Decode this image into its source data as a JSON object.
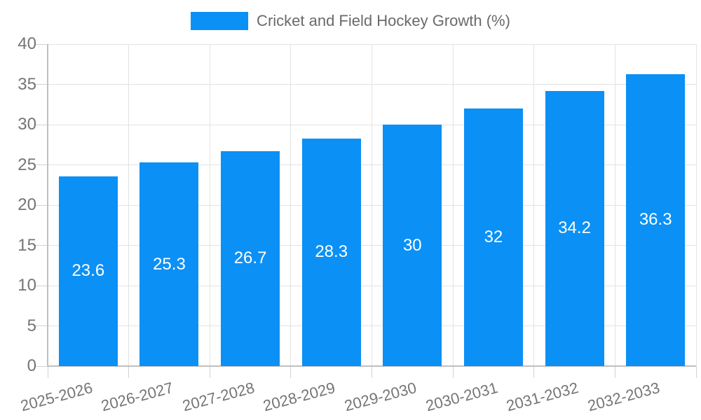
{
  "chart_data": {
    "type": "bar",
    "legend_label": "Cricket and Field Hockey Growth (%)",
    "legend_position": "top",
    "categories": [
      "2025-2026",
      "2026-2027",
      "2027-2028",
      "2028-2029",
      "2029-2030",
      "2030-2031",
      "2031-2032",
      "2032-2033"
    ],
    "values": [
      23.6,
      25.3,
      26.7,
      28.3,
      30,
      32,
      34.2,
      36.3
    ],
    "value_labels": [
      "23.6",
      "25.3",
      "26.7",
      "28.3",
      "30",
      "32",
      "34.2",
      "36.3"
    ],
    "xlabel": "",
    "ylabel": "",
    "ylim": [
      0,
      40
    ],
    "yticks": [
      0,
      5,
      10,
      15,
      20,
      25,
      30,
      35,
      40
    ],
    "grid": true,
    "bar_label_position": "center-inside",
    "colors": {
      "bar": "#0b90f5",
      "bar_label": "#ffffff",
      "axis_label": "#757575",
      "legend_text": "#6a6a6a",
      "gridline": "#e3e3e3",
      "axis_line": "#c0c0c0",
      "tick": "#d2d2d2",
      "background": "#ffffff"
    }
  }
}
